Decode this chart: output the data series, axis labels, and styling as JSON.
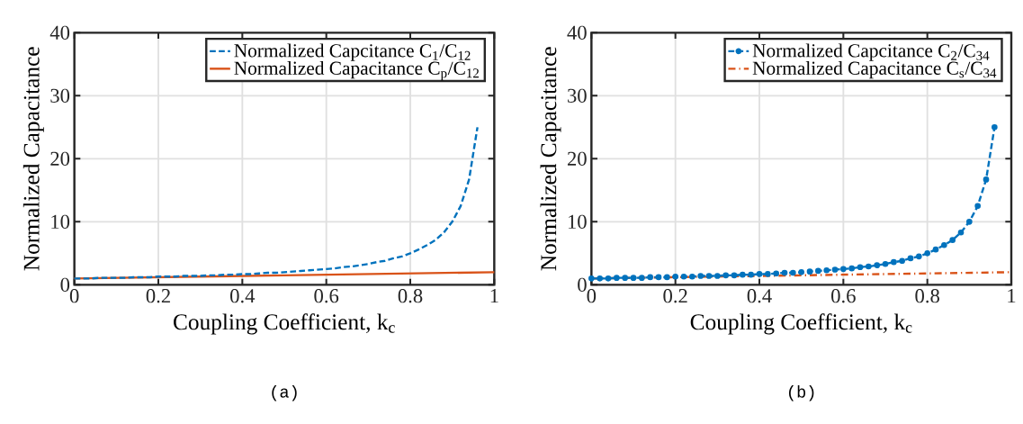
{
  "chart_data": [
    {
      "type": "line",
      "xlabel": "Coupling Coefficient, k$_{c}$",
      "ylabel": "Normalized Capacitance",
      "annotations": [
        "(a)"
      ],
      "xlim": [
        0,
        1
      ],
      "ylim": [
        0,
        40
      ],
      "xticks": [
        0,
        0.2,
        0.4,
        0.6,
        0.8,
        1
      ],
      "yticks": [
        0,
        10,
        20,
        30,
        40
      ],
      "grid": true,
      "legend": "top right",
      "x": [
        0,
        0.02,
        0.04,
        0.06,
        0.08,
        0.1,
        0.12,
        0.14,
        0.16,
        0.18,
        0.2,
        0.22,
        0.24,
        0.26,
        0.28,
        0.3,
        0.32,
        0.34,
        0.36,
        0.38,
        0.4,
        0.42,
        0.44,
        0.46,
        0.48,
        0.5,
        0.52,
        0.54,
        0.56,
        0.58,
        0.6,
        0.62,
        0.64,
        0.66,
        0.68,
        0.7,
        0.72,
        0.74,
        0.76,
        0.78,
        0.8,
        0.82,
        0.84,
        0.86,
        0.88,
        0.9,
        0.92,
        0.94,
        0.96
      ],
      "series": [
        {
          "name": "Normalized Capcitance C$_{1}$/C$_{12}$",
          "color": "#0072bd",
          "line_style": "dashed",
          "marker": "none",
          "values": [
            1.0,
            1.0,
            1.0,
            1.1,
            1.1,
            1.1,
            1.1,
            1.2,
            1.2,
            1.2,
            1.3,
            1.3,
            1.3,
            1.4,
            1.4,
            1.4,
            1.5,
            1.5,
            1.6,
            1.6,
            1.7,
            1.7,
            1.8,
            1.9,
            1.9,
            2.0,
            2.1,
            2.2,
            2.3,
            2.4,
            2.5,
            2.6,
            2.8,
            2.9,
            3.1,
            3.3,
            3.6,
            3.8,
            4.2,
            4.5,
            5.0,
            5.6,
            6.3,
            7.1,
            8.3,
            10.0,
            12.5,
            16.7,
            25.0
          ]
        },
        {
          "name": "Normalized Capacitance C$_{p}$/C$_{12}$",
          "color": "#d95319",
          "line_style": "solid",
          "marker": "none",
          "x": [
            0,
            0.5,
            1
          ],
          "values": [
            1.0,
            1.5,
            2.0
          ]
        }
      ]
    },
    {
      "type": "line",
      "xlabel": "Coupling Coefficient, k$_{c}$",
      "ylabel": "Normalized Capacitance",
      "annotations": [
        "(b)"
      ],
      "xlim": [
        0,
        1
      ],
      "ylim": [
        0,
        40
      ],
      "xticks": [
        0,
        0.2,
        0.4,
        0.6,
        0.8,
        1
      ],
      "yticks": [
        0,
        10,
        20,
        30,
        40
      ],
      "grid": true,
      "legend": "top right",
      "x": [
        0,
        0.02,
        0.04,
        0.06,
        0.08,
        0.1,
        0.12,
        0.14,
        0.16,
        0.18,
        0.2,
        0.22,
        0.24,
        0.26,
        0.28,
        0.3,
        0.32,
        0.34,
        0.36,
        0.38,
        0.4,
        0.42,
        0.44,
        0.46,
        0.48,
        0.5,
        0.52,
        0.54,
        0.56,
        0.58,
        0.6,
        0.62,
        0.64,
        0.66,
        0.68,
        0.7,
        0.72,
        0.74,
        0.76,
        0.78,
        0.8,
        0.82,
        0.84,
        0.86,
        0.88,
        0.9,
        0.92,
        0.94,
        0.96
      ],
      "series": [
        {
          "name": "Normalized Capcitance C$_{2}$/C$_{34}$",
          "color": "#0072bd",
          "line_style": "dashed",
          "marker": "circle",
          "values": [
            1.0,
            1.0,
            1.0,
            1.1,
            1.1,
            1.1,
            1.1,
            1.2,
            1.2,
            1.2,
            1.3,
            1.3,
            1.3,
            1.4,
            1.4,
            1.4,
            1.5,
            1.5,
            1.6,
            1.6,
            1.7,
            1.7,
            1.8,
            1.9,
            1.9,
            2.0,
            2.1,
            2.2,
            2.3,
            2.4,
            2.5,
            2.6,
            2.8,
            2.9,
            3.1,
            3.3,
            3.6,
            3.8,
            4.2,
            4.5,
            5.0,
            5.6,
            6.3,
            7.1,
            8.3,
            10.0,
            12.5,
            16.7,
            25.0
          ]
        },
        {
          "name": "Normalized Capacitance C$_{s}$/C$_{34}$",
          "color": "#d95319",
          "line_style": "dashdot",
          "marker": "none",
          "x": [
            0,
            0.5,
            1
          ],
          "values": [
            1.0,
            1.5,
            2.0
          ]
        }
      ]
    }
  ]
}
